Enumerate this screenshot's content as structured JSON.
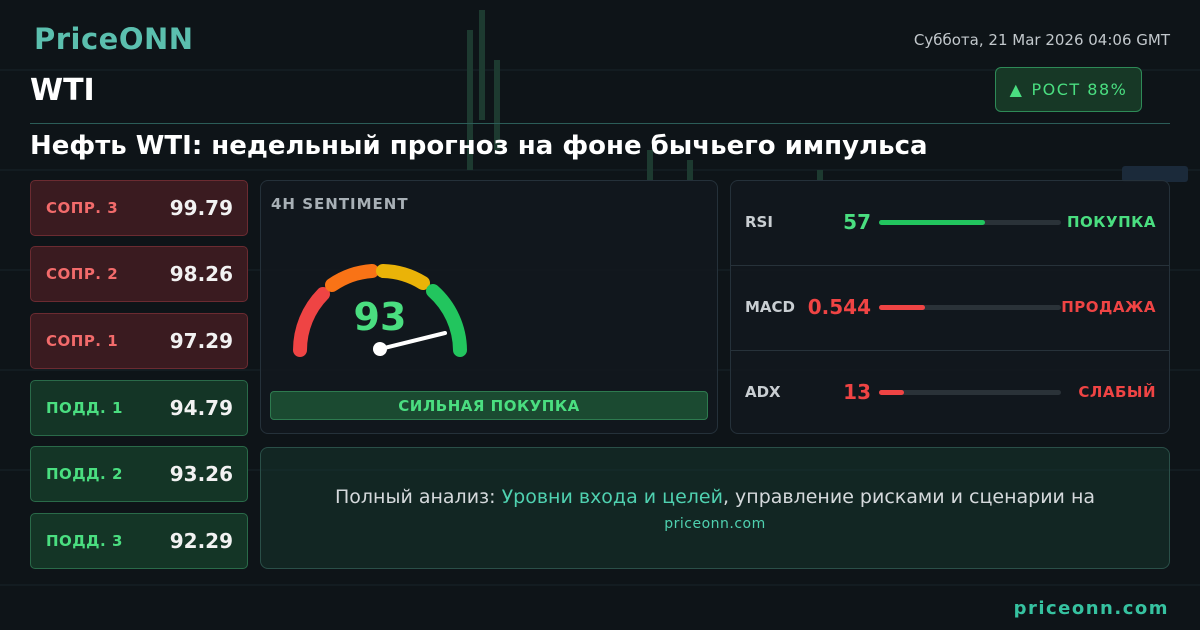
{
  "header": {
    "logo": "PriceONN",
    "date": "Суббота, 21 Mar 2026 04:06 GMT",
    "symbol": "WTI",
    "badge": "РОСТ 88%"
  },
  "title": "Нефть WTI: недельный прогноз на фоне бычьего импульса",
  "levels": [
    {
      "label": "СОПР. 3",
      "value": 99.79
    },
    {
      "label": "СОПР. 2",
      "value": 98.26
    },
    {
      "label": "СОПР. 1",
      "value": 97.29
    },
    {
      "label": "ПОДД. 1",
      "value": 94.79
    },
    {
      "label": "ПОДД. 2",
      "value": 93.26
    },
    {
      "label": "ПОДД. 3",
      "value": 92.29
    }
  ],
  "sentiment": {
    "title": "4H SENTIMENT",
    "value": 93,
    "verdict": "СИЛЬНАЯ ПОКУПКА"
  },
  "indicators": [
    {
      "name": "RSI",
      "value": 57,
      "signal": "ПОКУПКА"
    },
    {
      "name": "MACD",
      "value": 0.544,
      "signal": "ПРОДАЖА"
    },
    {
      "name": "ADX",
      "value": 13,
      "signal": "СЛАБЫЙ"
    }
  ],
  "footer": {
    "lead": "Полный анализ:",
    "link": "Уровни входа и целей",
    "rest": ", управление рисками и сценарии на",
    "site": "priceonn.com"
  },
  "brand_url": "priceonn.com"
}
